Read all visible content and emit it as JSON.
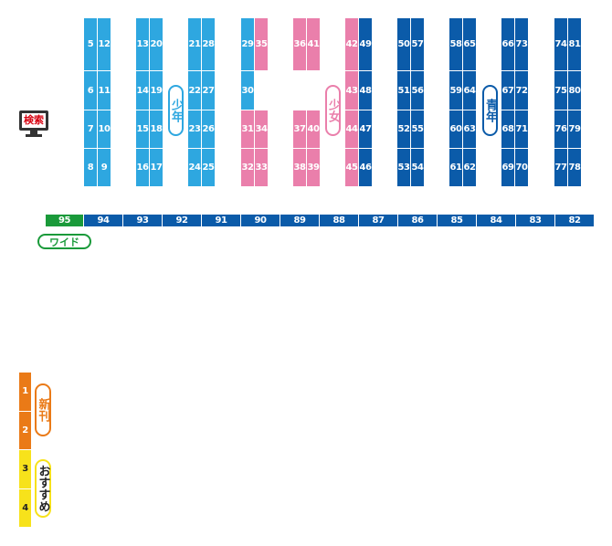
{
  "search_button": "検索",
  "aisles": [
    {
      "rows": [
        [
          5,
          12
        ],
        [
          6,
          11
        ],
        [
          7,
          10
        ],
        [
          8,
          9
        ]
      ]
    },
    {
      "rows": [
        [
          13,
          20
        ],
        [
          14,
          19
        ],
        [
          15,
          18
        ],
        [
          16,
          17
        ]
      ]
    },
    {
      "rows": [
        [
          21,
          28
        ],
        [
          22,
          27
        ],
        [
          23,
          26
        ],
        [
          24,
          25
        ]
      ]
    },
    {
      "rows": [
        [
          29,
          35
        ],
        [
          30,
          null
        ],
        [
          31,
          34
        ],
        [
          32,
          33
        ]
      ]
    },
    {
      "rows": [
        [
          36,
          41
        ],
        [
          null,
          null
        ],
        [
          37,
          40
        ],
        [
          38,
          39
        ]
      ]
    },
    {
      "rows": [
        [
          42,
          49
        ],
        [
          43,
          48
        ],
        [
          44,
          47
        ],
        [
          45,
          46
        ]
      ]
    },
    {
      "rows": [
        [
          50,
          57
        ],
        [
          51,
          56
        ],
        [
          52,
          55
        ],
        [
          53,
          54
        ]
      ]
    },
    {
      "rows": [
        [
          58,
          65
        ],
        [
          59,
          64
        ],
        [
          60,
          63
        ],
        [
          61,
          62
        ]
      ]
    },
    {
      "rows": [
        [
          66,
          73
        ],
        [
          67,
          72
        ],
        [
          68,
          71
        ],
        [
          69,
          70
        ]
      ]
    },
    {
      "rows": [
        [
          74,
          81
        ],
        [
          75,
          80
        ],
        [
          76,
          79
        ],
        [
          77,
          78
        ]
      ]
    }
  ],
  "genres": [
    "少年",
    "少女",
    "青年"
  ],
  "bottom_shelves": [
    95,
    94,
    93,
    92,
    91,
    90,
    89,
    88,
    87,
    86,
    85,
    84,
    83,
    82
  ],
  "wide_label": "ワイド",
  "front_shelves": [
    1,
    2,
    3,
    4
  ],
  "front_labels": [
    "新刊",
    "おすすめ"
  ]
}
